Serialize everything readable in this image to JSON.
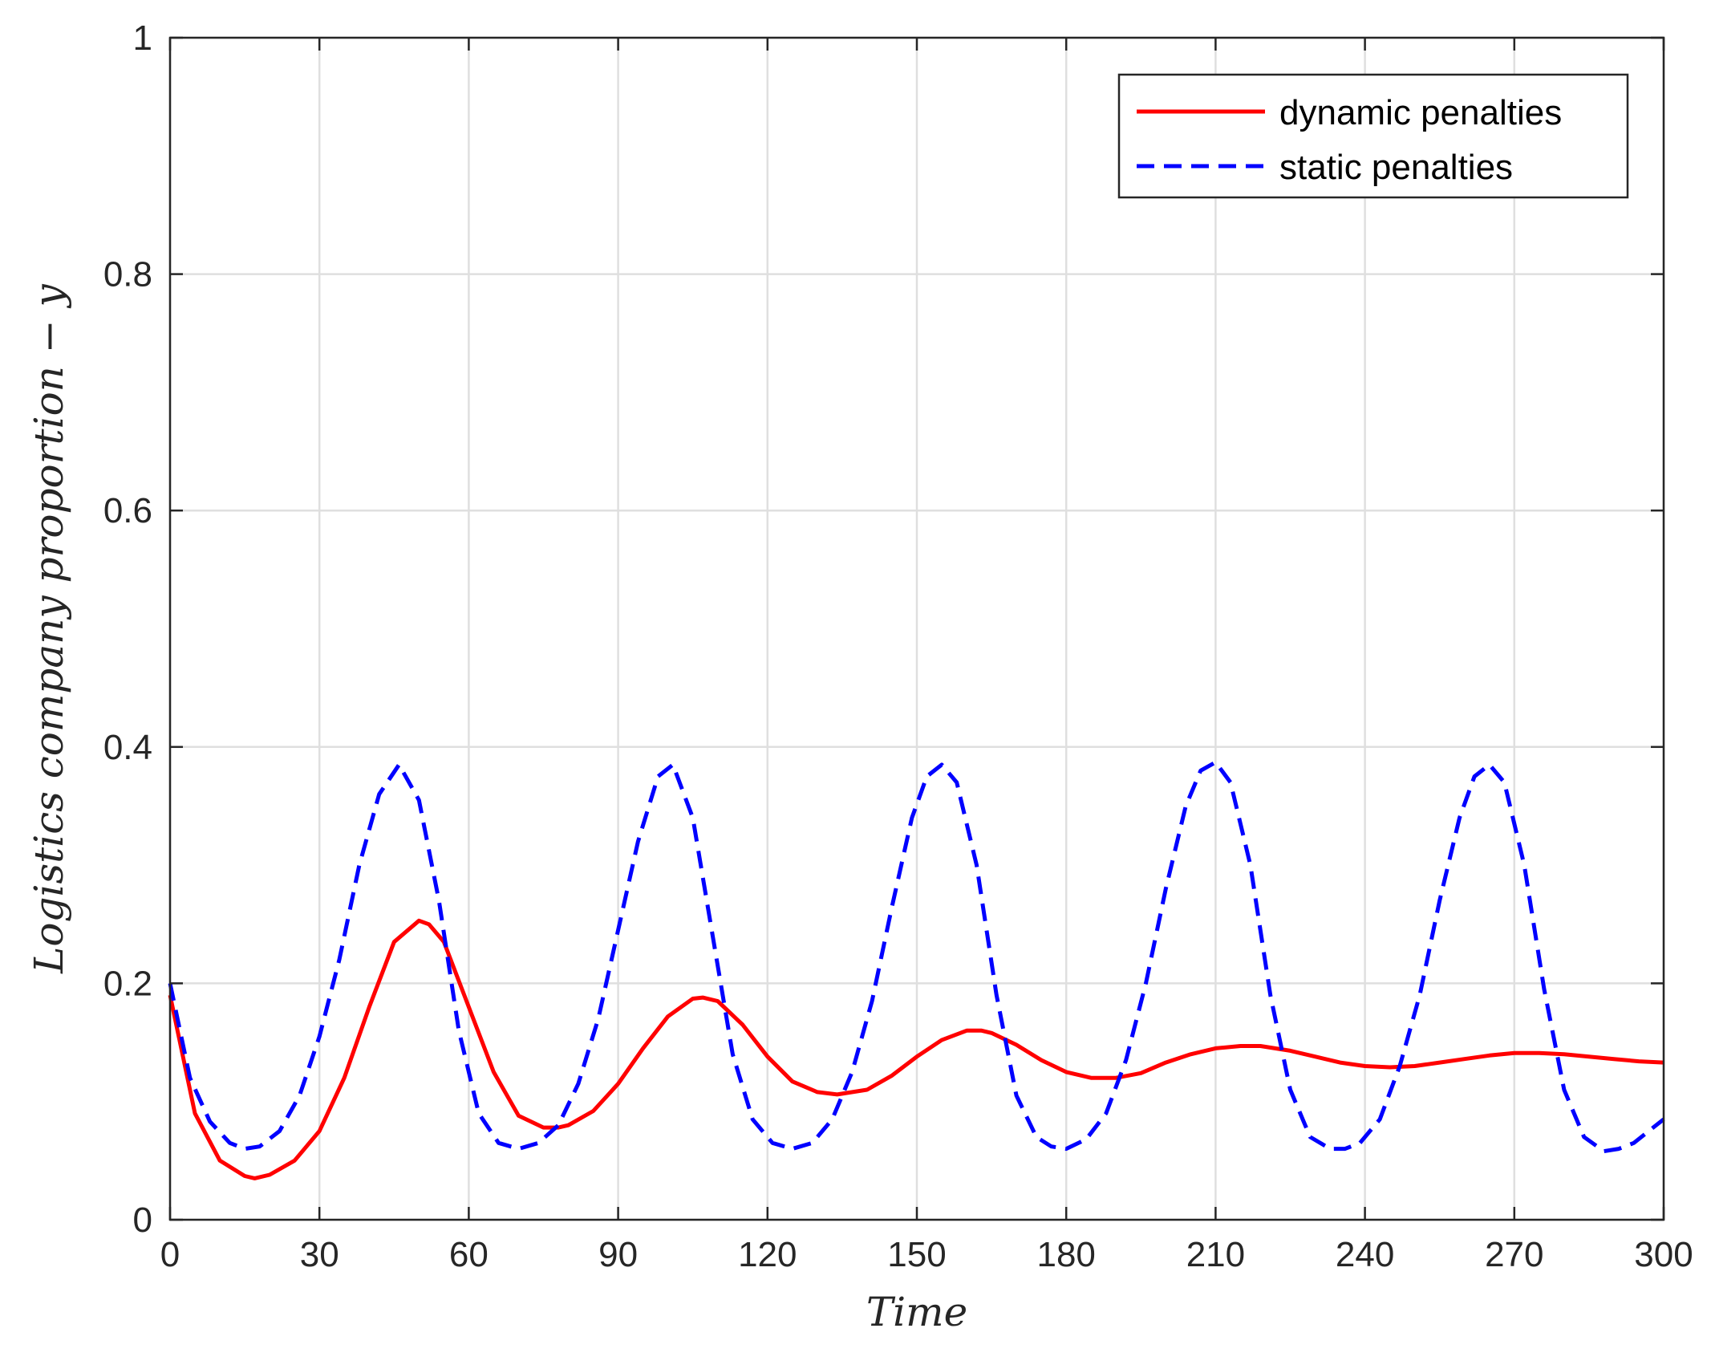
{
  "chart_data": {
    "type": "line",
    "xlabel": "Time",
    "ylabel": "Logistics company proportion − y",
    "xlim": [
      0,
      300
    ],
    "ylim": [
      0,
      1
    ],
    "xticks": [
      0,
      30,
      60,
      90,
      120,
      150,
      180,
      210,
      240,
      270,
      300
    ],
    "xtick_labels": [
      "0",
      "30",
      "60",
      "90",
      "120",
      "150",
      "180",
      "210",
      "240",
      "270",
      "300"
    ],
    "yticks": [
      0,
      0.2,
      0.4,
      0.6,
      0.8,
      1
    ],
    "ytick_labels": [
      "0",
      "0.2",
      "0.4",
      "0.6",
      "0.8",
      "1"
    ],
    "grid": true,
    "legend_position": "top-right",
    "series": [
      {
        "name": "dynamic penalties",
        "color": "#ff0000",
        "style": "solid",
        "x": [
          0,
          5,
          10,
          15,
          17,
          20,
          25,
          30,
          35,
          40,
          45,
          50,
          52,
          55,
          60,
          65,
          70,
          75,
          78,
          80,
          85,
          90,
          95,
          100,
          105,
          107,
          110,
          115,
          120,
          125,
          130,
          134,
          140,
          145,
          150,
          155,
          160,
          163,
          165,
          170,
          175,
          180,
          185,
          190,
          195,
          200,
          205,
          210,
          215,
          219,
          225,
          230,
          235,
          240,
          245,
          250,
          255,
          260,
          265,
          270,
          275,
          280,
          285,
          290,
          295,
          300
        ],
        "y": [
          0.19,
          0.09,
          0.05,
          0.037,
          0.035,
          0.038,
          0.05,
          0.075,
          0.12,
          0.18,
          0.235,
          0.253,
          0.25,
          0.235,
          0.18,
          0.125,
          0.088,
          0.078,
          0.078,
          0.08,
          0.092,
          0.115,
          0.145,
          0.172,
          0.187,
          0.188,
          0.185,
          0.165,
          0.138,
          0.117,
          0.108,
          0.106,
          0.11,
          0.122,
          0.138,
          0.152,
          0.16,
          0.16,
          0.158,
          0.148,
          0.135,
          0.125,
          0.12,
          0.12,
          0.124,
          0.133,
          0.14,
          0.145,
          0.147,
          0.147,
          0.143,
          0.138,
          0.133,
          0.13,
          0.129,
          0.13,
          0.133,
          0.136,
          0.139,
          0.141,
          0.141,
          0.14,
          0.138,
          0.136,
          0.134,
          0.133
        ]
      },
      {
        "name": "static penalties",
        "color": "#0000ff",
        "style": "dashed",
        "x": [
          0,
          4,
          8,
          12,
          15,
          18,
          22,
          26,
          30,
          34,
          38,
          42,
          46,
          50,
          54,
          58,
          62,
          66,
          70,
          74,
          78,
          82,
          86,
          90,
          94,
          98,
          101,
          105,
          109,
          113,
          117,
          121,
          125,
          129,
          133,
          137,
          141,
          145,
          149,
          152,
          155,
          158,
          162,
          166,
          170,
          174,
          177,
          180,
          184,
          188,
          192,
          196,
          200,
          204,
          207,
          210,
          213,
          217,
          221,
          225,
          229,
          233,
          236,
          239,
          243,
          247,
          251,
          255,
          259,
          262,
          265,
          268,
          272,
          276,
          280,
          284,
          288,
          291,
          294,
          297,
          300
        ],
        "y": [
          0.2,
          0.12,
          0.083,
          0.065,
          0.06,
          0.062,
          0.075,
          0.105,
          0.155,
          0.22,
          0.3,
          0.36,
          0.385,
          0.355,
          0.27,
          0.16,
          0.09,
          0.065,
          0.06,
          0.065,
          0.08,
          0.115,
          0.17,
          0.245,
          0.32,
          0.375,
          0.385,
          0.34,
          0.24,
          0.14,
          0.085,
          0.065,
          0.06,
          0.065,
          0.085,
          0.125,
          0.185,
          0.265,
          0.34,
          0.375,
          0.385,
          0.37,
          0.3,
          0.19,
          0.105,
          0.07,
          0.062,
          0.06,
          0.068,
          0.09,
          0.135,
          0.2,
          0.28,
          0.35,
          0.38,
          0.387,
          0.37,
          0.3,
          0.19,
          0.11,
          0.07,
          0.06,
          0.06,
          0.065,
          0.085,
          0.13,
          0.19,
          0.27,
          0.34,
          0.375,
          0.385,
          0.37,
          0.3,
          0.195,
          0.11,
          0.07,
          0.058,
          0.06,
          0.065,
          0.075,
          0.085
        ]
      }
    ]
  }
}
